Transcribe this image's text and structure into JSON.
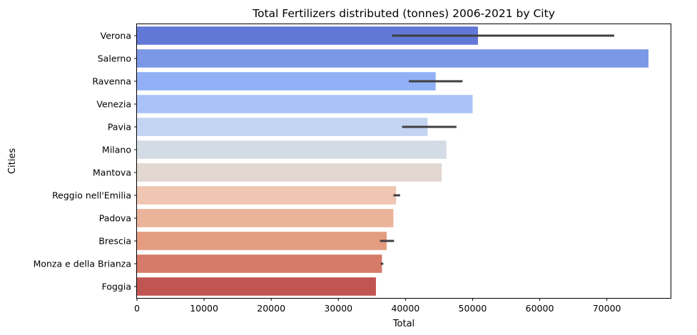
{
  "chart_data": {
    "type": "bar",
    "orientation": "horizontal",
    "title": "Total Fertilizers distributed (tonnes) 2006-2021 by City",
    "xlabel": "Total",
    "ylabel": "Cities",
    "xlim": [
      0,
      79500
    ],
    "xticks": [
      0,
      10000,
      20000,
      30000,
      40000,
      50000,
      60000,
      70000
    ],
    "xtick_labels": [
      "0",
      "10000",
      "20000",
      "30000",
      "40000",
      "50000",
      "60000",
      "70000"
    ],
    "grid": false,
    "legend": "none",
    "categories": [
      "Verona",
      "Salerno",
      "Ravenna",
      "Venezia",
      "Pavia",
      "Milano",
      "Mantova",
      "Reggio nell'Emilia",
      "Padova",
      "Brescia",
      "Monza e della Brianza",
      "Foggia"
    ],
    "values": [
      50800,
      76200,
      44500,
      50000,
      43300,
      46100,
      45400,
      38600,
      38200,
      37200,
      36500,
      35600
    ],
    "error_bars": [
      [
        38000,
        71100
      ],
      null,
      [
        40500,
        48500
      ],
      null,
      [
        39500,
        47600
      ],
      null,
      null,
      [
        38200,
        39200
      ],
      null,
      [
        36200,
        38300
      ],
      [
        36300,
        36700
      ],
      null
    ],
    "colors": [
      "#6178d6",
      "#7b98e6",
      "#91b0f6",
      "#a9c3f8",
      "#c3d3f2",
      "#d3dbe5",
      "#e2d8d1",
      "#eec6b2",
      "#ecb39b",
      "#e49c80",
      "#d67b68",
      "#c15551"
    ],
    "error_color": "#3f3f3f"
  }
}
